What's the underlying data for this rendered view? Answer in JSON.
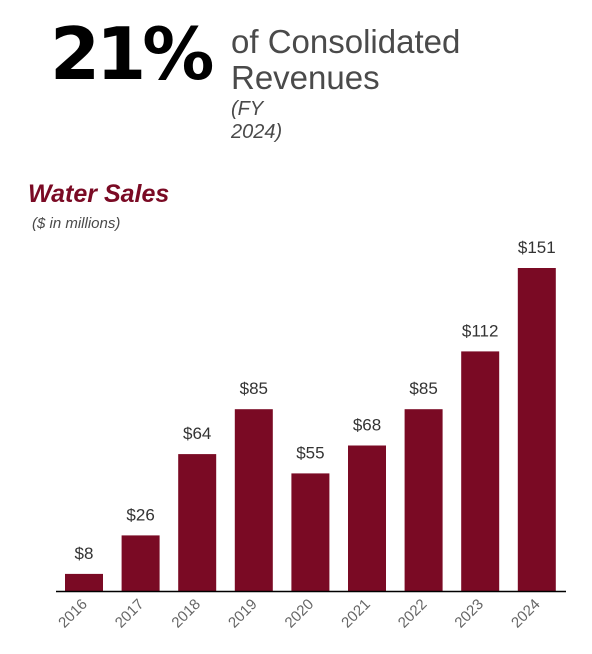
{
  "headline": {
    "percent": "21%",
    "text": "of Consolidated Revenues",
    "period": "(FY 2024)"
  },
  "chart_data": {
    "type": "bar",
    "title": "Water Sales",
    "subtitle": "($ in millions)",
    "categories": [
      "2016",
      "2017",
      "2018",
      "2019",
      "2020",
      "2021",
      "2022",
      "2023",
      "2024"
    ],
    "values": [
      8,
      26,
      64,
      85,
      55,
      68,
      85,
      112,
      151
    ],
    "value_labels": [
      "$8",
      "$26",
      "$64",
      "$85",
      "$55",
      "$68",
      "$85",
      "$112",
      "$151"
    ],
    "ylim": [
      0,
      151
    ],
    "grid": false,
    "legend": "none",
    "bar_color": "#7a0a24"
  }
}
